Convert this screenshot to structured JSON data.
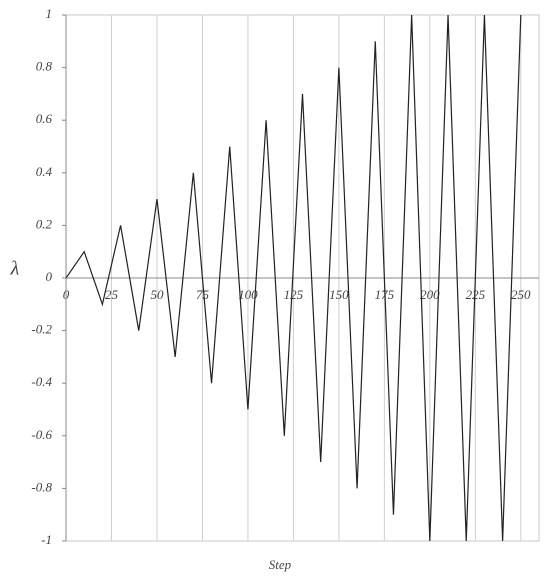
{
  "chart_data": {
    "type": "line",
    "x_label": "Step",
    "y_label": "λ",
    "x": [
      0,
      10,
      20,
      30,
      40,
      50,
      60,
      70,
      80,
      90,
      100,
      110,
      120,
      130,
      140,
      150,
      160,
      170,
      180,
      190,
      200,
      210,
      220,
      230,
      240,
      250
    ],
    "series": [
      {
        "color": "#222222",
        "values": [
          0,
          0.1,
          -0.1,
          0.2,
          -0.2,
          0.3,
          -0.3,
          0.4,
          -0.4,
          0.5,
          -0.5,
          0.6,
          -0.6,
          0.7,
          -0.7,
          0.8,
          -0.8,
          0.9,
          -0.9,
          1,
          -1,
          1,
          -1,
          1,
          -1,
          1
        ]
      }
    ],
    "xlim": [
      0,
      260
    ],
    "ylim": [
      -1,
      1
    ],
    "xticks": [
      0,
      25,
      50,
      75,
      100,
      125,
      150,
      175,
      200,
      225,
      250
    ],
    "yticks": [
      -1,
      -0.8,
      -0.6,
      -0.4,
      -0.2,
      0,
      0.2,
      0.4,
      0.6,
      0.8,
      1
    ],
    "grid": true
  }
}
